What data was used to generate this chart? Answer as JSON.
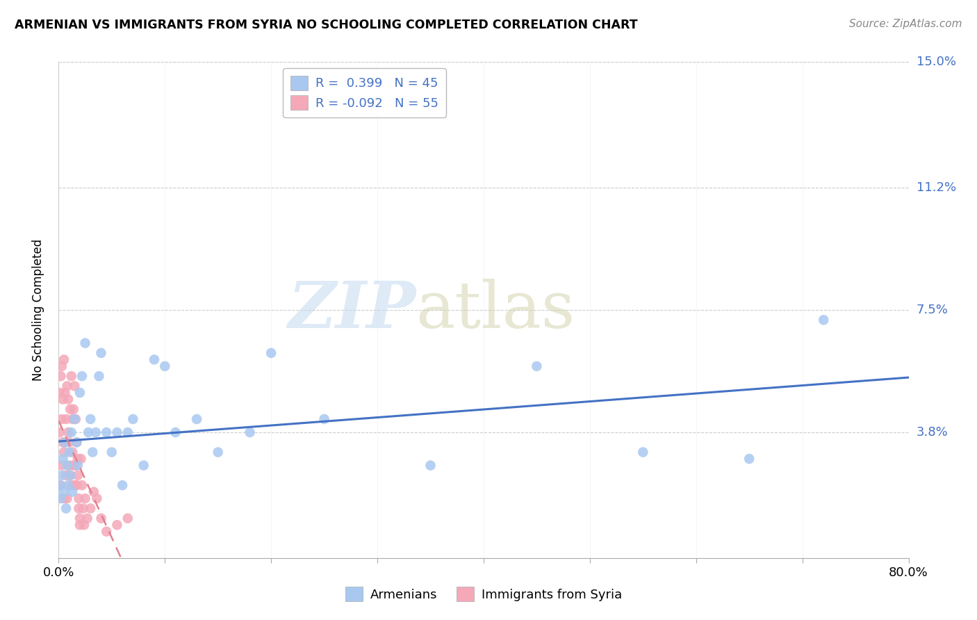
{
  "title": "ARMENIAN VS IMMIGRANTS FROM SYRIA NO SCHOOLING COMPLETED CORRELATION CHART",
  "source": "Source: ZipAtlas.com",
  "ylabel": "No Schooling Completed",
  "xlim": [
    0.0,
    0.8
  ],
  "ylim": [
    0.0,
    0.15
  ],
  "armenians_R": 0.399,
  "armenians_N": 45,
  "syria_R": -0.092,
  "syria_N": 55,
  "armenian_color": "#a8c8f0",
  "syria_color": "#f4a8b8",
  "line_blue": "#4472c4",
  "line_pink": "#e08090",
  "armenians_x": [
    0.001,
    0.002,
    0.003,
    0.004,
    0.005,
    0.006,
    0.007,
    0.008,
    0.009,
    0.01,
    0.011,
    0.012,
    0.013,
    0.015,
    0.017,
    0.018,
    0.02,
    0.022,
    0.025,
    0.028,
    0.03,
    0.032,
    0.035,
    0.038,
    0.04,
    0.045,
    0.05,
    0.055,
    0.06,
    0.065,
    0.07,
    0.08,
    0.09,
    0.1,
    0.11,
    0.13,
    0.15,
    0.18,
    0.2,
    0.25,
    0.35,
    0.45,
    0.55,
    0.65,
    0.72
  ],
  "armenians_y": [
    0.022,
    0.018,
    0.025,
    0.03,
    0.02,
    0.035,
    0.015,
    0.028,
    0.022,
    0.032,
    0.025,
    0.038,
    0.02,
    0.042,
    0.035,
    0.028,
    0.05,
    0.055,
    0.065,
    0.038,
    0.042,
    0.032,
    0.038,
    0.055,
    0.062,
    0.038,
    0.032,
    0.038,
    0.022,
    0.038,
    0.042,
    0.028,
    0.06,
    0.058,
    0.038,
    0.042,
    0.032,
    0.038,
    0.062,
    0.042,
    0.028,
    0.058,
    0.032,
    0.03,
    0.072
  ],
  "syria_x": [
    0.001,
    0.001,
    0.002,
    0.002,
    0.003,
    0.003,
    0.003,
    0.004,
    0.004,
    0.005,
    0.005,
    0.005,
    0.006,
    0.006,
    0.007,
    0.007,
    0.008,
    0.008,
    0.009,
    0.009,
    0.01,
    0.01,
    0.011,
    0.011,
    0.012,
    0.012,
    0.013,
    0.013,
    0.014,
    0.014,
    0.015,
    0.015,
    0.016,
    0.016,
    0.017,
    0.017,
    0.018,
    0.018,
    0.019,
    0.019,
    0.02,
    0.02,
    0.021,
    0.022,
    0.023,
    0.024,
    0.025,
    0.027,
    0.03,
    0.033,
    0.036,
    0.04,
    0.045,
    0.055,
    0.065
  ],
  "syria_y": [
    0.05,
    0.038,
    0.055,
    0.022,
    0.058,
    0.042,
    0.028,
    0.048,
    0.035,
    0.06,
    0.018,
    0.032,
    0.05,
    0.035,
    0.042,
    0.025,
    0.052,
    0.018,
    0.038,
    0.048,
    0.035,
    0.028,
    0.045,
    0.025,
    0.055,
    0.022,
    0.042,
    0.032,
    0.028,
    0.045,
    0.022,
    0.052,
    0.028,
    0.042,
    0.022,
    0.035,
    0.03,
    0.025,
    0.018,
    0.015,
    0.012,
    0.01,
    0.03,
    0.022,
    0.015,
    0.01,
    0.018,
    0.012,
    0.015,
    0.02,
    0.018,
    0.012,
    0.008,
    0.01,
    0.012
  ]
}
